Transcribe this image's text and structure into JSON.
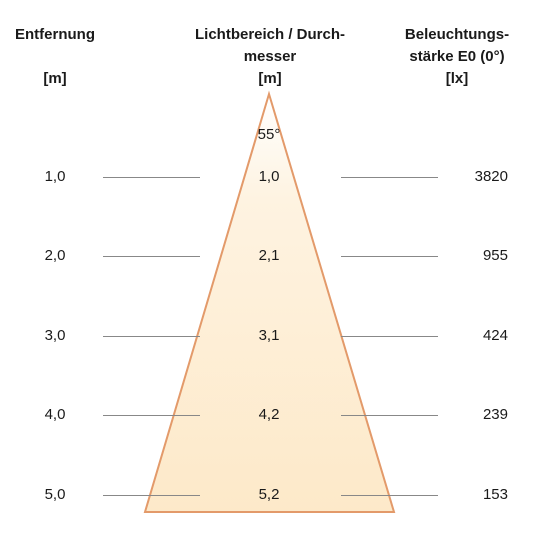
{
  "headers": {
    "distance": [
      "Entfernung",
      "[m]"
    ],
    "beam": [
      "Lichtbereich / Durch-",
      "messer",
      "[m]"
    ],
    "illuminance": [
      "Beleuchtungs-",
      "stärke E0 (0°)",
      "[lx]"
    ]
  },
  "beam_angle": "55°",
  "rows": [
    {
      "distance": "1,0",
      "diameter": "1,0",
      "lux": "3820"
    },
    {
      "distance": "2,0",
      "diameter": "2,1",
      "lux": "955"
    },
    {
      "distance": "3,0",
      "diameter": "3,1",
      "lux": "424"
    },
    {
      "distance": "4,0",
      "diameter": "4,2",
      "lux": "239"
    },
    {
      "distance": "5,0",
      "diameter": "5,2",
      "lux": "153"
    }
  ],
  "colors": {
    "cone_fill": "#fdedd0",
    "cone_edge": "#e39a6a",
    "rule": "#888888",
    "text": "#1a1a1a"
  }
}
